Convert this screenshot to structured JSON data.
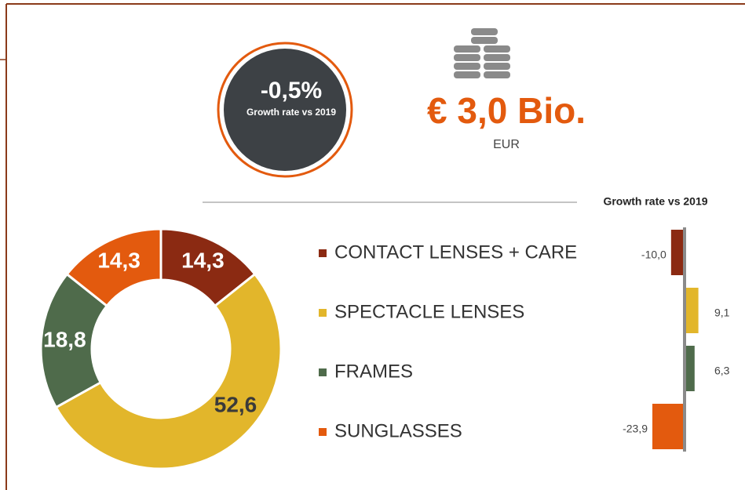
{
  "kpi": {
    "growth": "-0,5%",
    "growth_caption": "Growth rate vs 2019",
    "market_value": "€ 3,0 Bio.",
    "currency": "EUR"
  },
  "chart_data": [
    {
      "type": "donut",
      "categories": [
        "CONTACT LENSES + CARE",
        "SPECTACLE LENSES",
        "FRAMES",
        "SUNGLASSES"
      ],
      "values": [
        14.3,
        52.6,
        18.8,
        14.3
      ],
      "value_labels": [
        "14,3",
        "52,6",
        "18,8",
        "14,3"
      ],
      "colors": [
        "#8b2a12",
        "#e2b62b",
        "#4f6b4b",
        "#e35a0e"
      ]
    },
    {
      "type": "bar",
      "orientation": "horizontal",
      "title": "Growth rate vs 2019",
      "values": [
        -10.0,
        9.1,
        6.3,
        -23.9
      ],
      "value_labels": [
        "-10,0",
        "9,1",
        "6,3",
        "-23,9"
      ],
      "colors": [
        "#8b2a12",
        "#e2b62b",
        "#4f6b4b",
        "#e35a0e"
      ]
    }
  ]
}
